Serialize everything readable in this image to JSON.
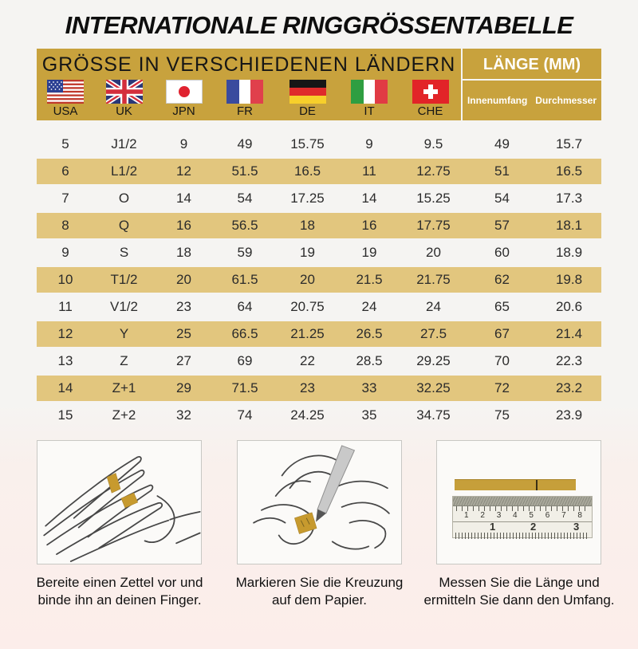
{
  "title": "INTERNATIONALE RINGGRÖSSENTABELLE",
  "table": {
    "header_left": "GRÖSSE IN VERSCHIEDENEN LÄNDERN",
    "header_right": "LÄNGE (MM)",
    "length_subheaders": [
      "Innenumfang",
      "Durchmesser"
    ],
    "countries": [
      "USA",
      "UK",
      "JPN",
      "FR",
      "DE",
      "IT",
      "CHE"
    ],
    "columns": [
      "USA",
      "UK",
      "JPN",
      "FR",
      "DE",
      "IT",
      "CHE",
      "Innenumfang",
      "Durchmesser"
    ],
    "rows": [
      [
        "5",
        "J1/2",
        "9",
        "49",
        "15.75",
        "9",
        "9.5",
        "49",
        "15.7"
      ],
      [
        "6",
        "L1/2",
        "12",
        "51.5",
        "16.5",
        "11",
        "12.75",
        "51",
        "16.5"
      ],
      [
        "7",
        "O",
        "14",
        "54",
        "17.25",
        "14",
        "15.25",
        "54",
        "17.3"
      ],
      [
        "8",
        "Q",
        "16",
        "56.5",
        "18",
        "16",
        "17.75",
        "57",
        "18.1"
      ],
      [
        "9",
        "S",
        "18",
        "59",
        "19",
        "19",
        "20",
        "60",
        "18.9"
      ],
      [
        "10",
        "T1/2",
        "20",
        "61.5",
        "20",
        "21.5",
        "21.75",
        "62",
        "19.8"
      ],
      [
        "11",
        "V1/2",
        "23",
        "64",
        "20.75",
        "24",
        "24",
        "65",
        "20.6"
      ],
      [
        "12",
        "Y",
        "25",
        "66.5",
        "21.25",
        "26.5",
        "27.5",
        "67",
        "21.4"
      ],
      [
        "13",
        "Z",
        "27",
        "69",
        "22",
        "28.5",
        "29.25",
        "70",
        "22.3"
      ],
      [
        "14",
        "Z+1",
        "29",
        "71.5",
        "23",
        "33",
        "32.25",
        "72",
        "23.2"
      ],
      [
        "15",
        "Z+2",
        "32",
        "74",
        "24.25",
        "35",
        "34.75",
        "75",
        "23.9"
      ]
    ]
  },
  "instructions": [
    {
      "icon": "hand-with-paper-strip-icon",
      "caption_line1": "Bereite einen Zettel vor und",
      "caption_line2": "binde ihn an deinen Finger."
    },
    {
      "icon": "pen-marking-icon",
      "caption_line1": "Markieren Sie die Kreuzung",
      "caption_line2": "auf dem Papier."
    },
    {
      "icon": "ruler-icon",
      "caption_line1": "Messen Sie die Länge und",
      "caption_line2": "ermitteln Sie dann den Umfang.",
      "ruler": {
        "top_scale": [
          "1",
          "2",
          "3",
          "4",
          "5",
          "6",
          "7",
          "8"
        ],
        "bottom_scale": [
          "1",
          "2",
          "3"
        ]
      }
    }
  ],
  "colors": {
    "header_gold": "#C8A23D",
    "row_gold": "#E2C67E",
    "strip_gold": "#C69F3A",
    "page_top": "#F5F4F2",
    "page_bottom": "#FCEDEA",
    "header_text_white": "#FFFFFF",
    "text_black": "#161616"
  }
}
